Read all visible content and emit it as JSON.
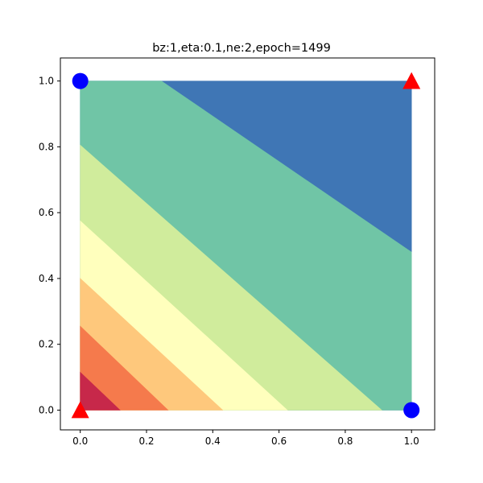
{
  "chart_data": {
    "type": "contour",
    "title": "bz:1,eta:0.1,ne:2,epoch=1499",
    "xlabel": "",
    "ylabel": "",
    "xlim": [
      -0.06,
      1.07
    ],
    "ylim": [
      -0.06,
      1.07
    ],
    "grid": false,
    "legend": "none",
    "x_ticks": [
      0.0,
      0.2,
      0.4,
      0.6,
      0.8,
      1.0
    ],
    "y_ticks": [
      0.0,
      0.2,
      0.4,
      0.6,
      0.8,
      1.0
    ],
    "x_tick_labels": [
      "0.0",
      "0.2",
      "0.4",
      "0.6",
      "0.8",
      "1.0"
    ],
    "y_tick_labels": [
      "0.0",
      "0.2",
      "0.4",
      "0.6",
      "0.8",
      "1.0"
    ],
    "contour_region": {
      "x": [
        0,
        1
      ],
      "y": [
        0,
        1
      ]
    },
    "contour_bands": [
      {
        "color": "#c7284a",
        "boundary": [
          [
            0,
            0.115
          ],
          [
            0.12,
            0
          ]
        ]
      },
      {
        "color": "#f57a4c",
        "boundary": [
          [
            0,
            0.255
          ],
          [
            0.265,
            0
          ]
        ]
      },
      {
        "color": "#fec87c",
        "boundary": [
          [
            0,
            0.4
          ],
          [
            0.43,
            0
          ]
        ]
      },
      {
        "color": "#ffffbd",
        "boundary": [
          [
            0,
            0.575
          ],
          [
            0.625,
            0
          ]
        ]
      },
      {
        "color": "#d0ec9c",
        "boundary": [
          [
            0,
            0.805
          ],
          [
            0.91,
            0
          ]
        ]
      },
      {
        "color": "#70c5a6",
        "boundary": [
          [
            0.245,
            1.0
          ],
          [
            1.0,
            0.48
          ]
        ]
      },
      {
        "color": "#3f76b5",
        "boundary": null
      }
    ],
    "points": [
      {
        "x": 0,
        "y": 1,
        "marker": "circle",
        "color": "#0000ff"
      },
      {
        "x": 1,
        "y": 0,
        "marker": "circle",
        "color": "#0000ff"
      },
      {
        "x": 0,
        "y": 0,
        "marker": "triangle",
        "color": "#ff0000"
      },
      {
        "x": 1,
        "y": 1,
        "marker": "triangle",
        "color": "#ff0000"
      }
    ]
  }
}
